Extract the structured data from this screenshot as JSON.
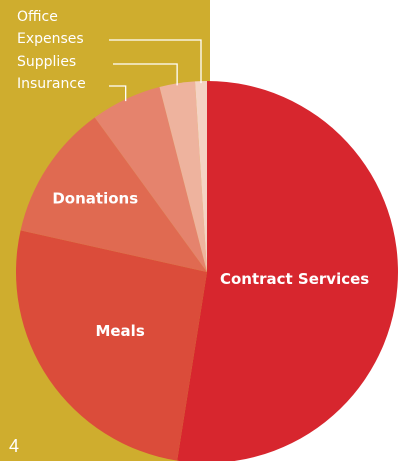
{
  "page": {
    "number": "4"
  },
  "colors": {
    "background_band": "#cfad2e",
    "leader_line": "#ffffff",
    "label_text": "#ffffff"
  },
  "chart_data": {
    "type": "pie",
    "title": "",
    "labels": [
      "Contract Services",
      "Meals",
      "Donations",
      "Insurance",
      "Supplies",
      "Office Expenses"
    ],
    "values": [
      52.5,
      26.0,
      11.5,
      6.0,
      3.0,
      1.0
    ],
    "colors": [
      "#d7262e",
      "#db4c3a",
      "#e06a51",
      "#e5836d",
      "#eeb39e",
      "#f4d3c4"
    ],
    "start_angle_deg": 0,
    "direction": "clockwise",
    "legend": "external labels with leader lines for small slices"
  }
}
